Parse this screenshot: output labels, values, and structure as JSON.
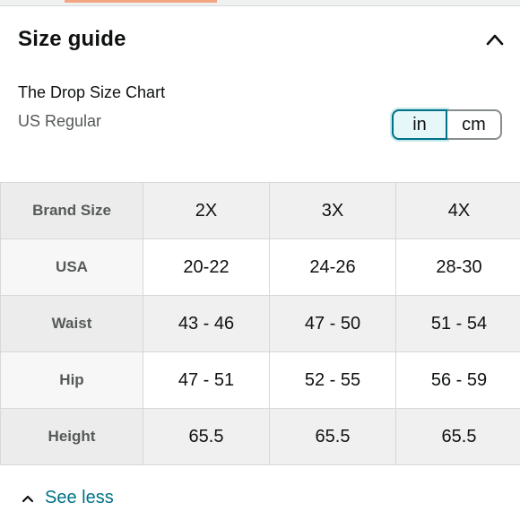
{
  "section": {
    "title": "Size guide",
    "collapse_icon": "chevron-up-icon"
  },
  "chart": {
    "name": "The Drop Size Chart",
    "fit": "US Regular"
  },
  "units": {
    "options": [
      "in",
      "cm"
    ],
    "selected": "in",
    "accent_color": "#007185"
  },
  "table": {
    "rows": [
      {
        "label": "Brand Size",
        "values": [
          "2X",
          "3X",
          "4X"
        ]
      },
      {
        "label": "USA",
        "values": [
          "20-22",
          "24-26",
          "28-30"
        ]
      },
      {
        "label": "Waist",
        "values": [
          "43 - 46",
          "47 - 50",
          "51 - 54"
        ]
      },
      {
        "label": "Hip",
        "values": [
          "47 - 51",
          "52 - 55",
          "56 - 59"
        ]
      },
      {
        "label": "Height",
        "values": [
          "65.5",
          "65.5",
          "65.5"
        ]
      }
    ]
  },
  "footer": {
    "see_less_label": "See less",
    "link_color": "#007185"
  }
}
